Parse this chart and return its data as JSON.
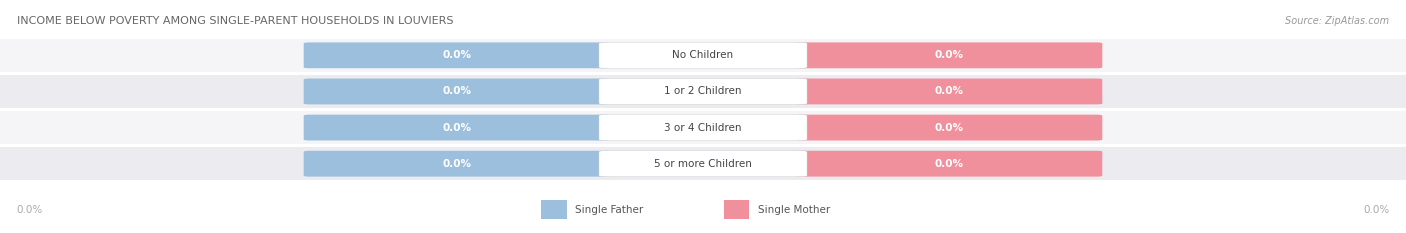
{
  "title": "INCOME BELOW POVERTY AMONG SINGLE-PARENT HOUSEHOLDS IN LOUVIERS",
  "source": "Source: ZipAtlas.com",
  "categories": [
    "No Children",
    "1 or 2 Children",
    "3 or 4 Children",
    "5 or more Children"
  ],
  "single_father_values": [
    0.0,
    0.0,
    0.0,
    0.0
  ],
  "single_mother_values": [
    0.0,
    0.0,
    0.0,
    0.0
  ],
  "father_color": "#9bbfdc",
  "mother_color": "#f0909c",
  "row_bg_color_odd": "#f5f5f8",
  "row_bg_color_even": "#ebebf0",
  "title_color": "#666666",
  "source_color": "#999999",
  "category_text_color": "#444444",
  "axis_label_color": "#aaaaaa",
  "legend_father_color": "#9bbfdc",
  "legend_mother_color": "#f0909c",
  "figsize": [
    14.06,
    2.33
  ],
  "dpi": 100
}
